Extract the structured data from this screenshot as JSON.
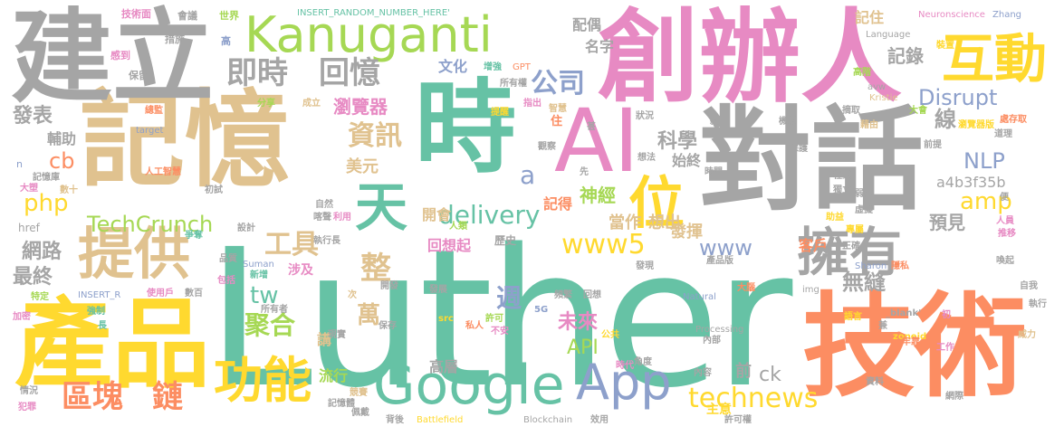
{
  "palette": {
    "gray": "#a5a5a5",
    "tan": "#e0c28f",
    "green": "#66c2a5",
    "orange": "#fc8d62",
    "pink": "#e78ac3",
    "lime": "#a6d854",
    "yellow": "#ffd92f",
    "blue": "#8da0cb"
  },
  "words": [
    {
      "text": "Luther",
      "color": "green"
    },
    {
      "text": "創辦人",
      "color": "pink"
    },
    {
      "text": "記憶",
      "color": "tan"
    },
    {
      "text": "對話",
      "color": "gray"
    },
    {
      "text": "技術",
      "color": "orange"
    },
    {
      "text": "建立",
      "color": "gray"
    },
    {
      "text": "產品",
      "color": "yellow"
    },
    {
      "text": "時",
      "color": "green"
    },
    {
      "text": "AI",
      "color": "pink"
    },
    {
      "text": "Kanuganti",
      "color": "lime"
    },
    {
      "text": "互動",
      "color": "yellow"
    },
    {
      "text": "Google",
      "color": "green"
    },
    {
      "text": "App",
      "color": "blue"
    },
    {
      "text": "擁有",
      "color": "gray"
    },
    {
      "text": "提供",
      "color": "tan"
    },
    {
      "text": "天",
      "color": "green"
    },
    {
      "text": "位",
      "color": "yellow"
    },
    {
      "text": "功能",
      "color": "yellow"
    },
    {
      "text": "即時",
      "color": "gray"
    },
    {
      "text": "回憶",
      "color": "gray"
    },
    {
      "text": "區塊",
      "color": "orange"
    },
    {
      "text": "鏈",
      "color": "orange"
    },
    {
      "text": "資訊",
      "color": "tan"
    },
    {
      "text": "工具",
      "color": "tan"
    },
    {
      "text": "www5",
      "color": "yellow"
    },
    {
      "text": "technews",
      "color": "yellow"
    },
    {
      "text": "delivery",
      "color": "green"
    },
    {
      "text": "TechCrunch",
      "color": "lime"
    },
    {
      "text": "公司",
      "color": "blue"
    },
    {
      "text": "Disrupt",
      "color": "blue"
    },
    {
      "text": "NLP",
      "color": "blue"
    },
    {
      "text": "amp",
      "color": "yellow"
    },
    {
      "text": "php",
      "color": "yellow"
    },
    {
      "text": "cb",
      "color": "orange"
    },
    {
      "text": "www",
      "color": "blue"
    },
    {
      "text": "API",
      "color": "lime"
    },
    {
      "text": "tw",
      "color": "green"
    },
    {
      "text": "聚合",
      "color": "lime"
    },
    {
      "text": "整",
      "color": "tan"
    },
    {
      "text": "週",
      "color": "blue"
    },
    {
      "text": "萬",
      "color": "tan"
    },
    {
      "text": "未來",
      "color": "pink"
    },
    {
      "text": "線",
      "color": "gray"
    },
    {
      "text": "無縫",
      "color": "gray"
    },
    {
      "text": "科學",
      "color": "gray"
    },
    {
      "text": "網路",
      "color": "gray"
    },
    {
      "text": "最終",
      "color": "gray"
    },
    {
      "text": "發表",
      "color": "gray"
    },
    {
      "text": "記錄",
      "color": "gray"
    },
    {
      "text": "瀏覽器",
      "color": "pink"
    },
    {
      "text": "美元",
      "color": "tan"
    },
    {
      "text": "預見",
      "color": "gray"
    },
    {
      "text": "神經",
      "color": "lime"
    },
    {
      "text": "記得",
      "color": "orange"
    },
    {
      "text": "當作",
      "color": "tan"
    },
    {
      "text": "想出",
      "color": "tan"
    },
    {
      "text": "發揮",
      "color": "tan"
    },
    {
      "text": "a",
      "color": "blue"
    },
    {
      "text": "ck",
      "color": "gray"
    },
    {
      "text": "前",
      "color": "gray"
    },
    {
      "text": "高層",
      "color": "gray"
    },
    {
      "text": "流行",
      "color": "lime"
    },
    {
      "text": "開會",
      "color": "tan"
    },
    {
      "text": "講",
      "color": "tan"
    },
    {
      "text": "涉及",
      "color": "pink"
    },
    {
      "text": "回想起",
      "color": "pink"
    },
    {
      "text": "文化",
      "color": "blue"
    },
    {
      "text": "始終",
      "color": "gray"
    },
    {
      "text": "配偶",
      "color": "gray"
    },
    {
      "text": "名字",
      "color": "gray"
    },
    {
      "text": "記住",
      "color": "tan"
    },
    {
      "text": "客戶",
      "color": "orange"
    },
    {
      "text": "a4b3f35b",
      "color": "gray"
    },
    {
      "text": "輔助",
      "color": "gray"
    },
    {
      "text": "主意",
      "color": "yellow"
    },
    {
      "text": "歷史",
      "color": "gray"
    },
    {
      "text": "INSERT_RANDOM_NUMBER_HERE'",
      "color": "green"
    },
    {
      "text": "技術面",
      "color": "pink"
    },
    {
      "text": "會議",
      "color": "gray"
    },
    {
      "text": "世界",
      "color": "lime"
    },
    {
      "text": "高",
      "color": "blue"
    },
    {
      "text": "措施",
      "color": "gray"
    },
    {
      "text": "感到",
      "color": "pink"
    },
    {
      "text": "保留",
      "color": "gray"
    },
    {
      "text": "分享",
      "color": "lime"
    },
    {
      "text": "成立",
      "color": "tan"
    },
    {
      "text": "增強",
      "color": "green"
    },
    {
      "text": "GPT",
      "color": "orange"
    },
    {
      "text": "所有權",
      "color": "gray"
    },
    {
      "text": "指出",
      "color": "pink"
    },
    {
      "text": "智慧",
      "color": "tan"
    },
    {
      "text": "提醒",
      "color": "yellow"
    },
    {
      "text": "住",
      "color": "orange"
    },
    {
      "text": "甚",
      "color": "gray"
    },
    {
      "text": "Neuronscience",
      "color": "pink"
    },
    {
      "text": "Zhang",
      "color": "blue"
    },
    {
      "text": "Language",
      "color": "gray"
    },
    {
      "text": "高階",
      "color": "lime"
    },
    {
      "text": "裝置",
      "color": "yellow"
    },
    {
      "text": "avw",
      "color": "gray"
    },
    {
      "text": "Kristie",
      "color": "tan"
    },
    {
      "text": "摘取",
      "color": "gray"
    },
    {
      "text": "大會",
      "color": "lime"
    },
    {
      "text": "藉由",
      "color": "tan"
    },
    {
      "text": "處存取",
      "color": "orange"
    },
    {
      "text": "瀏覽器版",
      "color": "yellow"
    },
    {
      "text": "道理",
      "color": "gray"
    },
    {
      "text": "機制",
      "color": "gray"
    },
    {
      "text": "保護",
      "color": "gray"
    },
    {
      "text": "前提",
      "color": "gray"
    },
    {
      "text": "target",
      "color": "blue"
    },
    {
      "text": "總監",
      "color": "orange"
    },
    {
      "text": "n",
      "color": "blue"
    },
    {
      "text": "記憶庫",
      "color": "gray"
    },
    {
      "text": "人工智慧",
      "color": "orange"
    },
    {
      "text": "大塑",
      "color": "pink"
    },
    {
      "text": "數十",
      "color": "tan"
    },
    {
      "text": "初試",
      "color": "gray"
    },
    {
      "text": "自然",
      "color": "gray"
    },
    {
      "text": "喀聲",
      "color": "gray"
    },
    {
      "text": "利用",
      "color": "pink"
    },
    {
      "text": "人類",
      "color": "lime"
    },
    {
      "text": "想法",
      "color": "gray"
    },
    {
      "text": "程式",
      "color": "gray"
    },
    {
      "text": "時間",
      "color": "gray"
    },
    {
      "text": "獨立",
      "color": "gray"
    },
    {
      "text": "弱點",
      "color": "gray"
    },
    {
      "text": "虛擬",
      "color": "gray"
    },
    {
      "text": "便",
      "color": "gray"
    },
    {
      "text": "助益",
      "color": "yellow"
    },
    {
      "text": "人員",
      "color": "pink"
    },
    {
      "text": "推移",
      "color": "pink"
    },
    {
      "text": "href",
      "color": "gray"
    },
    {
      "text": "設計",
      "color": "gray"
    },
    {
      "text": "爭奪",
      "color": "green"
    },
    {
      "text": "品質",
      "color": "gray"
    },
    {
      "text": "執行長",
      "color": "gray"
    },
    {
      "text": "產品版",
      "color": "gray"
    },
    {
      "text": "發現",
      "color": "gray"
    },
    {
      "text": "正確",
      "color": "gray"
    },
    {
      "text": "專屬",
      "color": "yellow"
    },
    {
      "text": "Suman",
      "color": "blue"
    },
    {
      "text": "新增",
      "color": "green"
    },
    {
      "text": "INSERT_R",
      "color": "blue"
    },
    {
      "text": "包括",
      "color": "pink"
    },
    {
      "text": "使用戶",
      "color": "pink"
    },
    {
      "text": "數百",
      "color": "gray"
    },
    {
      "text": "Sharon",
      "color": "blue"
    },
    {
      "text": "隱私",
      "color": "orange"
    },
    {
      "text": "喚起",
      "color": "gray"
    },
    {
      "text": "特定",
      "color": "lime"
    },
    {
      "text": "次",
      "color": "tan"
    },
    {
      "text": "開發",
      "color": "gray"
    },
    {
      "text": "發展",
      "color": "gray"
    },
    {
      "text": "頻繁",
      "color": "gray"
    },
    {
      "text": "回想",
      "color": "gray"
    },
    {
      "text": "img",
      "color": "gray"
    },
    {
      "text": "自我",
      "color": "gray"
    },
    {
      "text": "加密",
      "color": "pink"
    },
    {
      "text": "強制",
      "color": "green"
    },
    {
      "text": "所有者",
      "color": "gray"
    },
    {
      "text": "5G",
      "color": "blue"
    },
    {
      "text": "src",
      "color": "yellow"
    },
    {
      "text": "Natural",
      "color": "blue"
    },
    {
      "text": "大腦",
      "color": "orange"
    },
    {
      "text": "執行",
      "color": "gray"
    },
    {
      "text": "長",
      "color": "green"
    },
    {
      "text": "許可",
      "color": "lime"
    },
    {
      "text": "私人",
      "color": "orange"
    },
    {
      "text": "不安",
      "color": "pink"
    },
    {
      "text": "Processing",
      "color": "gray"
    },
    {
      "text": "語言",
      "color": "yellow"
    },
    {
      "text": "_blank'",
      "color": "gray"
    },
    {
      "text": "初",
      "color": "pink"
    },
    {
      "text": "現實",
      "color": "gray"
    },
    {
      "text": "保存",
      "color": "gray"
    },
    {
      "text": "公共",
      "color": "yellow"
    },
    {
      "text": "內部",
      "color": "gray"
    },
    {
      "text": "兼",
      "color": "gray"
    },
    {
      "text": "zoneid",
      "color": "yellow"
    },
    {
      "text": "威力",
      "color": "tan"
    },
    {
      "text": "牢靠",
      "color": "orange"
    },
    {
      "text": "工作",
      "color": "pink"
    },
    {
      "text": "情況",
      "color": "gray"
    },
    {
      "text": "角度",
      "color": "gray"
    },
    {
      "text": "時代",
      "color": "pink"
    },
    {
      "text": "內容",
      "color": "gray"
    },
    {
      "text": "資料",
      "color": "gray"
    },
    {
      "text": "網際",
      "color": "gray"
    },
    {
      "text": "犯罪",
      "color": "pink"
    },
    {
      "text": "佩戴",
      "color": "gray"
    },
    {
      "text": "記憶體",
      "color": "gray"
    },
    {
      "text": "競賽",
      "color": "tan"
    },
    {
      "text": "背後",
      "color": "gray"
    },
    {
      "text": "Battlefield",
      "color": "yellow"
    },
    {
      "text": "Blockchain",
      "color": "gray"
    },
    {
      "text": "效用",
      "color": "gray"
    },
    {
      "text": "許可權",
      "color": "gray"
    },
    {
      "text": "狀況",
      "color": "gray"
    },
    {
      "text": "觀察",
      "color": "gray"
    },
    {
      "text": "先",
      "color": "gray"
    },
    {
      "text": "款",
      "color": "gray"
    }
  ]
}
